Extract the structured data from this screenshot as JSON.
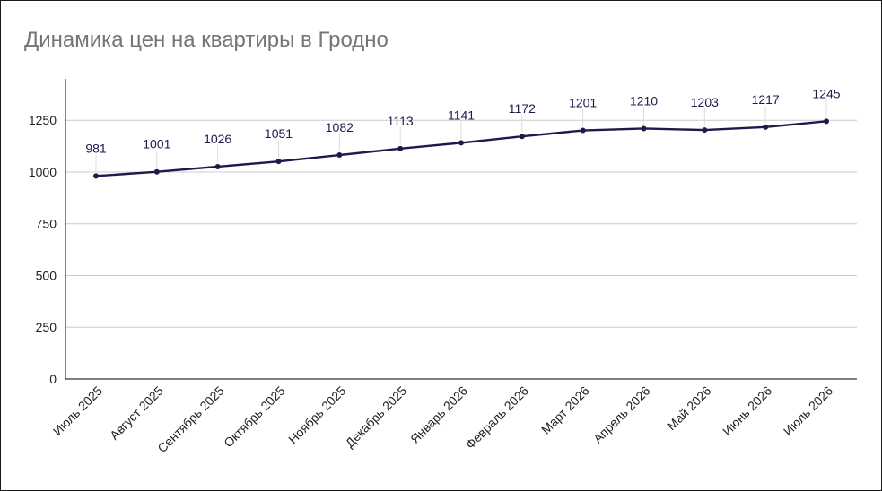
{
  "chart_data": {
    "type": "line",
    "title": "Динамика цен на квартиры в Гродно",
    "xlabel": "",
    "ylabel": "",
    "categories": [
      "Июль 2025",
      "Август 2025",
      "Сентябрь 2025",
      "Октябрь 2025",
      "Ноябрь 2025",
      "Декабрь 2025",
      "Январь 2026",
      "Февраль 2026",
      "Март 2026",
      "Апрель 2026",
      "Май 2026",
      "Июнь 2026",
      "Июль 2026"
    ],
    "series": [
      {
        "values": [
          981,
          1001,
          1026,
          1051,
          1082,
          1113,
          1141,
          1172,
          1201,
          1210,
          1203,
          1217,
          1245
        ],
        "color": "#1f1a4d"
      }
    ],
    "yticks": [
      "0",
      "250",
      "500",
      "750",
      "1000",
      "1250"
    ],
    "ylim": [
      0,
      1450
    ],
    "grid": true,
    "legend": "none",
    "data_labels": true
  }
}
